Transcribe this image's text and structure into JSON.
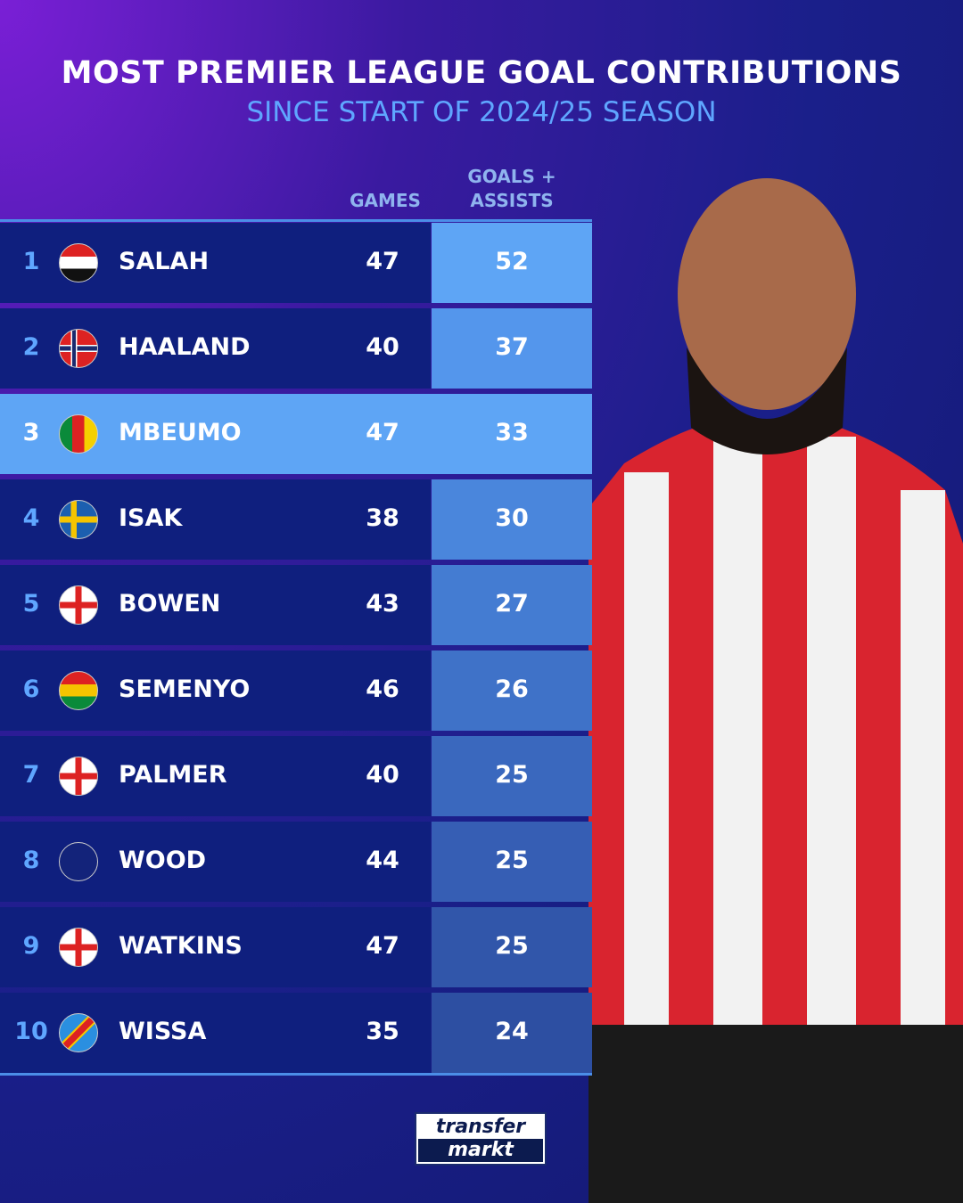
{
  "title": "MOST PREMIER LEAGUE GOAL CONTRIBUTIONS",
  "subtitle": "SINCE START OF 2024/25 SEASON",
  "logo_text": [
    "transfer",
    "markt"
  ],
  "colors": {
    "highlight": "#5ea5f5",
    "row_bg": "#0f1f7e",
    "accent": "#5fa6ff"
  },
  "chart_data": {
    "type": "table",
    "columns": [
      "",
      "",
      "",
      "GAMES",
      "GOALS + ASSISTS"
    ],
    "highlighted_rank": 3,
    "rows": [
      {
        "rank": "1",
        "flag": "egypt",
        "name": "SALAH",
        "games": 47,
        "ga": 52
      },
      {
        "rank": "2",
        "flag": "norway",
        "name": "HAALAND",
        "games": 40,
        "ga": 37
      },
      {
        "rank": "3",
        "flag": "cameroon",
        "name": "MBEUMO",
        "games": 47,
        "ga": 33
      },
      {
        "rank": "4",
        "flag": "sweden",
        "name": "ISAK",
        "games": 38,
        "ga": 30
      },
      {
        "rank": "5",
        "flag": "england",
        "name": "BOWEN",
        "games": 43,
        "ga": 27
      },
      {
        "rank": "6",
        "flag": "ghana",
        "name": "SEMENYO",
        "games": 46,
        "ga": 26
      },
      {
        "rank": "7",
        "flag": "england",
        "name": "PALMER",
        "games": 40,
        "ga": 25
      },
      {
        "rank": "8",
        "flag": "new-zealand",
        "name": "WOOD",
        "games": 44,
        "ga": 25
      },
      {
        "rank": "9",
        "flag": "england",
        "name": "WATKINS",
        "games": 47,
        "ga": 25
      },
      {
        "rank": "10",
        "flag": "dr-congo",
        "name": "WISSA",
        "games": 35,
        "ga": 24
      }
    ]
  }
}
